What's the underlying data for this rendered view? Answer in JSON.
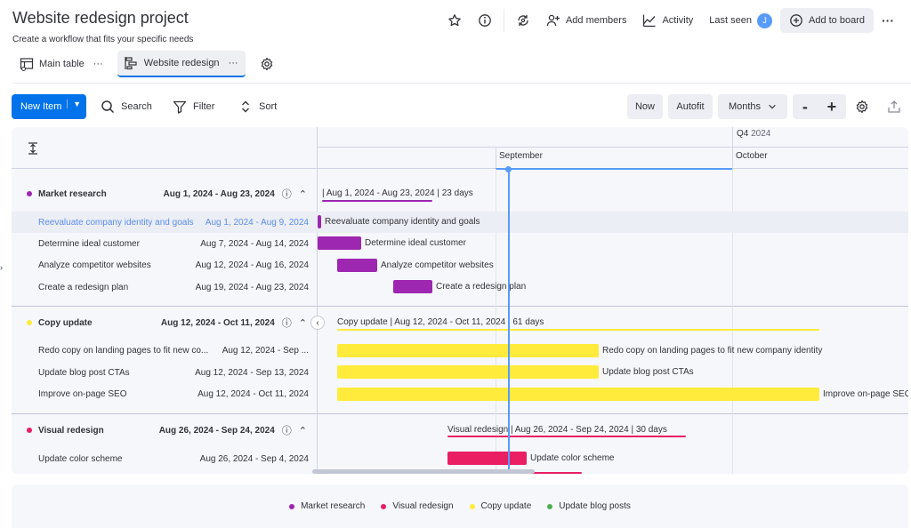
{
  "header": {
    "title": "Website redesign project",
    "subtitle": "Create a workflow that fits your specific needs",
    "add_members": "Add members",
    "activity": "Activity",
    "last_seen": "Last seen",
    "avatar_initial": "J",
    "add_to_board": "Add to board",
    "more": "···"
  },
  "views": [
    {
      "label": "Main table",
      "more": "···",
      "icon": "table-icon"
    },
    {
      "label": "Website redesign",
      "more": "···",
      "icon": "gantt-icon"
    }
  ],
  "toolbar": {
    "new_item": "New Item",
    "search": "Search",
    "filter": "Filter",
    "sort": "Sort",
    "now": "Now",
    "autofit": "Autofit",
    "months": "Months",
    "zoom_out": "-",
    "zoom_in": "+"
  },
  "timeline": {
    "quarter": "Q4",
    "quarter_year": "2024",
    "months": [
      "September",
      "October"
    ]
  },
  "groups": [
    {
      "name": "Market research",
      "dates": "Aug 1, 2024 - Aug 23, 2024",
      "color": "#9d27b0",
      "summary": "| Aug 1, 2024 - Aug 23, 2024 | 23 days",
      "items": [
        {
          "name": "Reevaluate company identity and goals",
          "dates": "Aug 1, 2024 - Aug 9, 2024",
          "label": "Reevaluate company identity and goals"
        },
        {
          "name": "Determine ideal customer",
          "dates": "Aug 7, 2024 - Aug 14, 2024",
          "label": "Determine ideal customer"
        },
        {
          "name": "Analyze competitor websites",
          "dates": "Aug 12, 2024 - Aug 16, 2024",
          "label": "Analyze competitor websites"
        },
        {
          "name": "Create a redesign plan",
          "dates": "Aug 19, 2024 - Aug 23, 2024",
          "label": "Create a redesign plan"
        }
      ]
    },
    {
      "name": "Copy update",
      "dates": "Aug 12, 2024 - Oct 11, 2024",
      "color": "#ffeb3b",
      "summary": "Copy update | Aug 12, 2024 - Oct 11, 2024 | 61 days",
      "items": [
        {
          "name": "Redo copy on landing pages to fit new co...",
          "dates": "Aug 12, 2024 - Sep ...",
          "label": "Redo copy on landing pages to fit new company identity"
        },
        {
          "name": "Update blog post CTAs",
          "dates": "Aug 12, 2024 - Sep 13, 2024",
          "label": "Update blog post CTAs"
        },
        {
          "name": "Improve on-page SEO",
          "dates": "Aug 12, 2024 - Oct 11, 2024",
          "label": "Improve on-page SEO"
        }
      ]
    },
    {
      "name": "Visual redesign",
      "dates": "Aug 26, 2024 - Sep 24, 2024",
      "color": "#e91e63",
      "summary": "Visual redesign | Aug 26, 2024 - Sep 24, 2024 | 30 days",
      "items": [
        {
          "name": "Update color scheme",
          "dates": "Aug 26, 2024 - Sep 4, 2024",
          "label": "Update color scheme"
        }
      ]
    }
  ],
  "legend": [
    {
      "label": "Market research",
      "color": "#9d27b0"
    },
    {
      "label": "Visual redesign",
      "color": "#e91e63"
    },
    {
      "label": "Copy update",
      "color": "#ffeb3b"
    },
    {
      "label": "Update blog posts",
      "color": "#4caf50"
    }
  ]
}
